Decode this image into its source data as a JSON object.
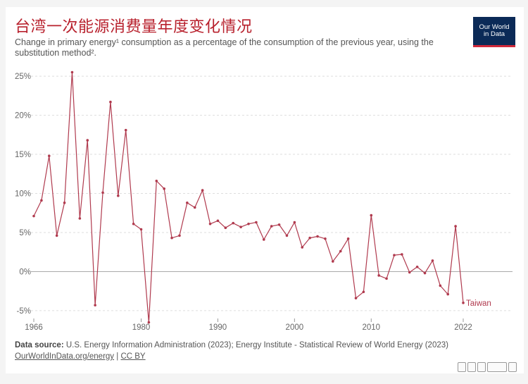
{
  "title": "台湾一次能源消费量年度变化情况",
  "subtitle": "Change in primary energy¹ consumption as a percentage of the consumption of the previous year, using the substitution method².",
  "logo": {
    "line1": "Our World",
    "line2": "in Data"
  },
  "source": {
    "label": "Data source:",
    "text": "U.S. Energy Information Administration (2023); Energy Institute - Statistical Review of World Energy (2023)"
  },
  "links": {
    "site": "OurWorldInData.org/energy",
    "sep": " | ",
    "license": "CC BY"
  },
  "colors": {
    "series": "#b03a4e",
    "title": "#b8212d",
    "grid": "#dddddd",
    "zero": "#aaaaaa"
  },
  "chart_data": {
    "type": "line",
    "ylim": [
      -6,
      26
    ],
    "yticks": [
      -5,
      0,
      5,
      10,
      15,
      20,
      25
    ],
    "ytick_labels": [
      "-5%",
      "0%",
      "5%",
      "10%",
      "15%",
      "20%",
      "25%"
    ],
    "xticks": [
      1966,
      1980,
      1990,
      2000,
      2010,
      2022
    ],
    "xlim": [
      1966,
      2022
    ],
    "series": [
      {
        "name": "Taiwan",
        "x": [
          1966,
          1967,
          1968,
          1969,
          1970,
          1971,
          1972,
          1973,
          1974,
          1975,
          1976,
          1977,
          1978,
          1979,
          1980,
          1981,
          1982,
          1983,
          1984,
          1985,
          1986,
          1987,
          1988,
          1989,
          1990,
          1991,
          1992,
          1993,
          1994,
          1995,
          1996,
          1997,
          1998,
          1999,
          2000,
          2001,
          2002,
          2003,
          2004,
          2005,
          2006,
          2007,
          2008,
          2009,
          2010,
          2011,
          2012,
          2013,
          2014,
          2015,
          2016,
          2017,
          2018,
          2019,
          2020,
          2021,
          2022
        ],
        "values": [
          7.1,
          9.1,
          14.8,
          4.6,
          8.8,
          25.5,
          6.8,
          16.8,
          -4.3,
          10.1,
          21.7,
          9.7,
          18.1,
          6.1,
          5.4,
          -6.5,
          11.6,
          10.6,
          4.3,
          4.6,
          8.8,
          8.2,
          10.4,
          6.1,
          6.5,
          5.6,
          6.2,
          5.7,
          6.1,
          6.3,
          4.1,
          5.8,
          6.0,
          4.6,
          6.3,
          3.1,
          4.3,
          4.5,
          4.2,
          1.3,
          2.6,
          4.2,
          -3.4,
          -2.6,
          7.2,
          -0.5,
          -0.9,
          2.1,
          2.2,
          -0.1,
          0.6,
          -0.2,
          1.4,
          -1.8,
          -2.9,
          5.8,
          -4.0
        ]
      }
    ]
  }
}
